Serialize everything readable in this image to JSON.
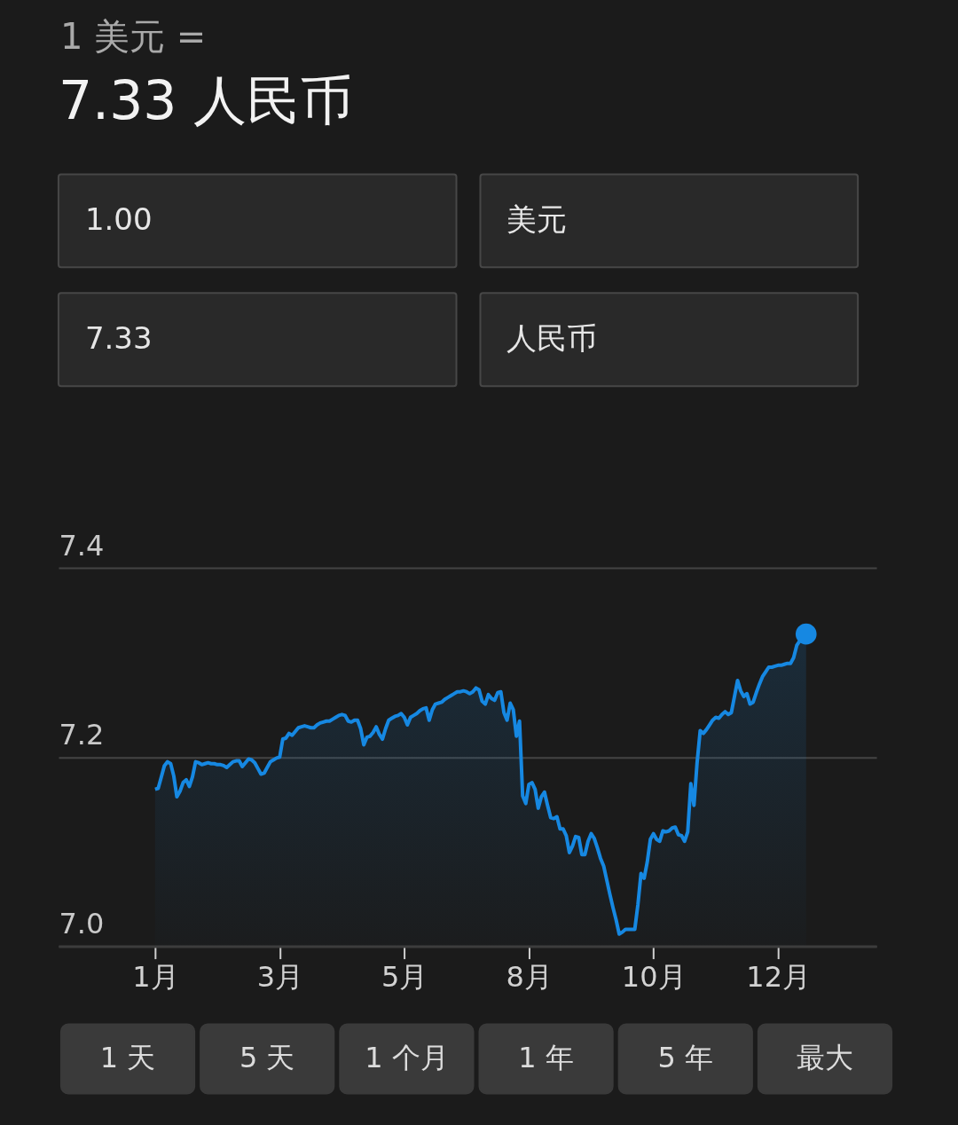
{
  "chart_data": [
    {
      "type": "other",
      "title": "1 美元 =",
      "subtitle": "7.33 人民币",
      "annotations": [
        "1.00",
        "美元",
        "7.33",
        "人民币"
      ]
    },
    {
      "type": "area",
      "grid": "y",
      "categories": [
        "1月",
        null,
        null,
        null,
        null,
        null,
        null,
        null,
        null,
        null,
        null,
        null,
        null,
        null,
        null,
        null,
        null,
        null,
        null,
        null,
        null,
        null,
        null,
        null,
        null,
        null,
        null,
        null,
        null,
        null,
        null,
        null,
        null,
        null,
        null,
        null,
        null,
        null,
        null,
        null,
        "3月",
        null,
        null,
        null,
        null,
        null,
        null,
        null,
        null,
        null,
        null,
        null,
        null,
        null,
        null,
        null,
        null,
        null,
        null,
        null,
        null,
        null,
        null,
        null,
        null,
        null,
        null,
        null,
        null,
        null,
        null,
        null,
        null,
        null,
        null,
        null,
        null,
        null,
        null,
        null,
        "5月",
        null,
        null,
        null,
        null,
        null,
        null,
        null,
        null,
        null,
        null,
        null,
        null,
        null,
        null,
        null,
        null,
        null,
        null,
        null,
        null,
        null,
        null,
        null,
        null,
        null,
        null,
        null,
        null,
        null,
        null,
        null,
        null,
        null,
        null,
        null,
        null,
        null,
        null,
        null,
        "8月",
        null,
        null,
        null,
        null,
        null,
        null,
        null,
        null,
        null,
        null,
        null,
        null,
        null,
        null,
        null,
        null,
        null,
        null,
        null,
        null,
        null,
        null,
        null,
        null,
        null,
        null,
        null,
        null,
        null,
        null,
        null,
        null,
        null,
        null,
        null,
        null,
        null,
        null,
        null,
        "10月",
        null,
        null,
        null,
        null,
        null,
        null,
        null,
        null,
        null,
        null,
        null,
        null,
        null,
        null,
        null,
        null,
        null,
        null,
        null,
        null,
        null,
        null,
        null,
        null,
        null,
        null,
        null,
        null,
        null,
        null,
        null,
        null,
        null,
        null,
        null,
        null,
        null,
        null,
        null,
        "12月",
        null,
        null,
        null,
        null,
        null,
        null,
        null,
        null,
        null
      ],
      "series": [
        {
          "type": "area",
          "color": "#1688e2",
          "line_style": "solid",
          "values": [
            7.166,
            7.167,
            7.179,
            7.191,
            7.195,
            7.193,
            7.18,
            7.158,
            7.164,
            7.173,
            7.176,
            7.169,
            7.179,
            7.195,
            7.194,
            7.192,
            7.193,
            7.194,
            7.193,
            7.193,
            7.192,
            7.192,
            7.191,
            7.189,
            7.192,
            7.195,
            7.196,
            7.196,
            7.19,
            7.194,
            7.198,
            7.197,
            7.194,
            7.188,
            7.182,
            7.183,
            7.189,
            7.195,
            7.197,
            7.199,
            7.2,
            7.219,
            7.22,
            7.225,
            7.223,
            7.227,
            7.231,
            7.232,
            7.233,
            7.232,
            7.231,
            7.231,
            7.234,
            7.236,
            7.237,
            7.238,
            7.238,
            7.24,
            7.242,
            7.244,
            7.245,
            7.244,
            7.238,
            7.237,
            7.239,
            7.239,
            7.23,
            7.213,
            7.221,
            7.222,
            7.226,
            7.232,
            7.224,
            7.219,
            7.23,
            7.239,
            7.241,
            7.243,
            7.244,
            7.246,
            7.242,
            7.234,
            7.242,
            7.244,
            7.246,
            7.249,
            7.251,
            7.252,
            7.239,
            7.25,
            7.256,
            7.257,
            7.258,
            7.261,
            7.263,
            7.265,
            7.267,
            7.269,
            7.269,
            7.27,
            7.269,
            7.267,
            7.269,
            7.273,
            7.271,
            7.259,
            7.256,
            7.266,
            7.262,
            7.26,
            7.268,
            7.269,
            7.247,
            7.239,
            7.257,
            7.25,
            7.222,
            7.238,
            7.159,
            7.151,
            7.171,
            7.173,
            7.166,
            7.146,
            7.158,
            7.163,
            7.149,
            7.136,
            7.135,
            7.137,
            7.124,
            7.124,
            7.117,
            7.099,
            7.106,
            7.116,
            7.115,
            7.097,
            7.097,
            7.111,
            7.119,
            7.114,
            7.104,
            7.093,
            7.085,
            7.07,
            7.055,
            7.041,
            7.028,
            7.013,
            7.015,
            7.018,
            7.018,
            7.018,
            7.018,
            7.044,
            7.077,
            7.072,
            7.089,
            7.113,
            7.119,
            7.113,
            7.111,
            7.122,
            7.121,
            7.122,
            7.125,
            7.126,
            7.118,
            7.117,
            7.111,
            7.121,
            7.172,
            7.149,
            7.194,
            7.228,
            7.225,
            7.229,
            7.234,
            7.239,
            7.242,
            7.241,
            7.245,
            7.248,
            7.245,
            7.247,
            7.264,
            7.281,
            7.27,
            7.264,
            7.267,
            7.256,
            7.258,
            7.268,
            7.277,
            7.285,
            7.29,
            7.295,
            7.295,
            7.296,
            7.297,
            7.297,
            7.298,
            7.299,
            7.299,
            7.305,
            7.318,
            7.323,
            7.327,
            7.33
          ]
        },
        {
          "type": "scatter",
          "color": "#1688e2",
          "marker": "circle",
          "values": [
            null,
            null,
            null,
            null,
            null,
            null,
            null,
            null,
            null,
            null,
            null,
            null,
            null,
            null,
            null,
            null,
            null,
            null,
            null,
            null,
            null,
            null,
            null,
            null,
            null,
            null,
            null,
            null,
            null,
            null,
            null,
            null,
            null,
            null,
            null,
            null,
            null,
            null,
            null,
            null,
            null,
            null,
            null,
            null,
            null,
            null,
            null,
            null,
            null,
            null,
            null,
            null,
            null,
            null,
            null,
            null,
            null,
            null,
            null,
            null,
            null,
            null,
            null,
            null,
            null,
            null,
            null,
            null,
            null,
            null,
            null,
            null,
            null,
            null,
            null,
            null,
            null,
            null,
            null,
            null,
            null,
            null,
            null,
            null,
            null,
            null,
            null,
            null,
            null,
            null,
            null,
            null,
            null,
            null,
            null,
            null,
            null,
            null,
            null,
            null,
            null,
            null,
            null,
            null,
            null,
            null,
            null,
            null,
            null,
            null,
            null,
            null,
            null,
            null,
            null,
            null,
            null,
            null,
            null,
            null,
            null,
            null,
            null,
            null,
            null,
            null,
            null,
            null,
            null,
            null,
            null,
            null,
            null,
            null,
            null,
            null,
            null,
            null,
            null,
            null,
            null,
            null,
            null,
            null,
            null,
            null,
            null,
            null,
            null,
            null,
            null,
            null,
            null,
            null,
            null,
            null,
            null,
            null,
            null,
            null,
            null,
            null,
            null,
            null,
            null,
            null,
            null,
            null,
            null,
            null,
            null,
            null,
            null,
            null,
            null,
            null,
            null,
            null,
            null,
            null,
            null,
            null,
            null,
            null,
            null,
            null,
            null,
            null,
            null,
            null,
            null,
            null,
            null,
            null,
            null,
            null,
            null,
            null,
            null,
            null,
            null,
            null,
            null,
            null,
            null,
            null,
            null,
            null,
            null,
            7.33
          ]
        }
      ],
      "ylim": [
        7.0,
        7.4
      ],
      "yticks": [
        {
          "value": 7.0,
          "label": "7.0"
        },
        7.2,
        7.4
      ]
    },
    {
      "type": "other",
      "annotations": [
        "1 天",
        "5 天",
        "1 个月",
        "1 年",
        "5 年",
        "最大"
      ]
    }
  ]
}
